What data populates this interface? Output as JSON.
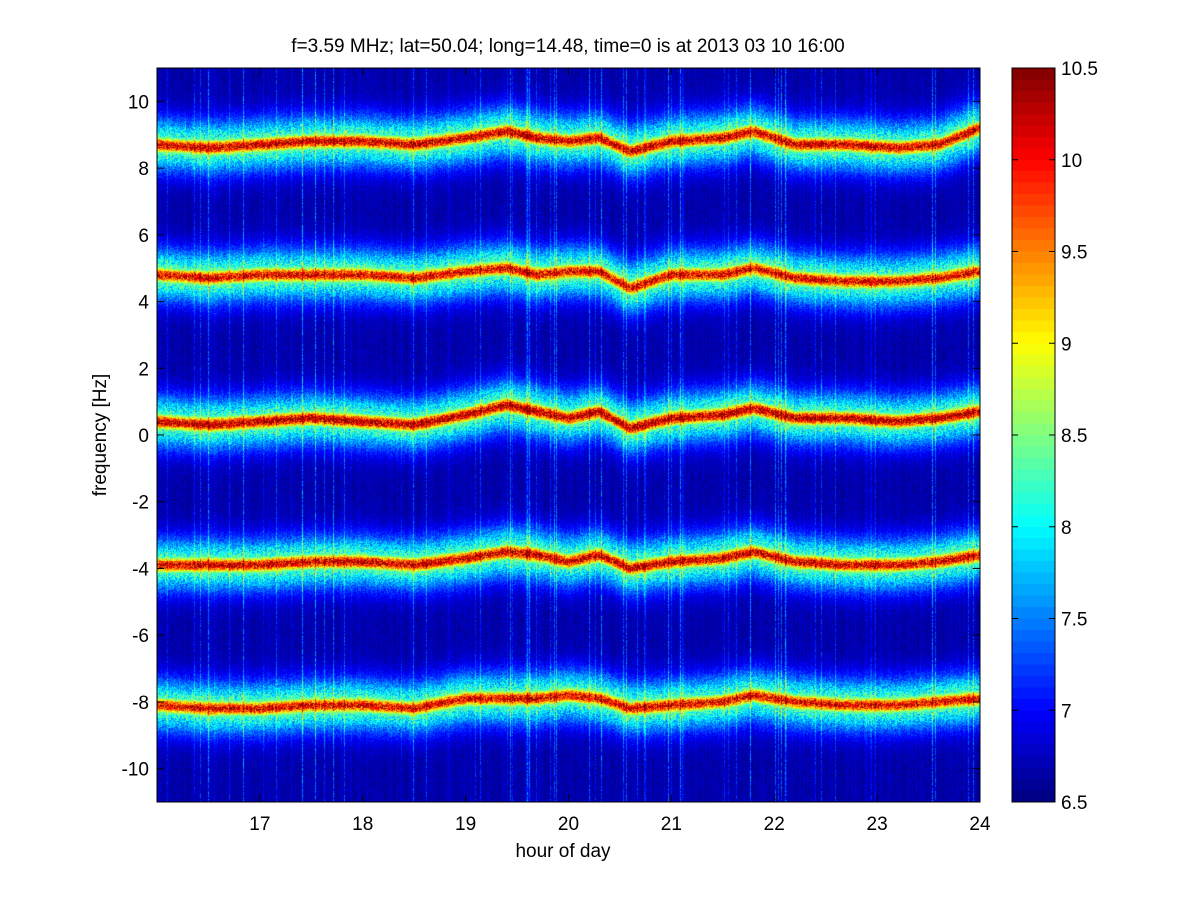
{
  "chart_data": {
    "type": "heatmap",
    "title": "f=3.59 MHz;  lat=50.04; long=14.48, time=0 is at 2013 03 10 16:00",
    "xlabel": "hour of day",
    "ylabel": "frequency [Hz]",
    "xlim": [
      16.0,
      24.0
    ],
    "ylim": [
      -11.0,
      11.0
    ],
    "xticks": [
      17,
      18,
      19,
      20,
      21,
      22,
      23,
      24
    ],
    "yticks": [
      -10,
      -8,
      -6,
      -4,
      -2,
      0,
      2,
      4,
      6,
      8,
      10
    ],
    "colormap": "jet",
    "clim": [
      6.5,
      10.5
    ],
    "colorbar_ticks": [
      6.5,
      7,
      7.5,
      8,
      8.5,
      9,
      9.5,
      10,
      10.5
    ],
    "background_value": 6.6,
    "bands": [
      {
        "center": [
          [
            16.0,
            8.7
          ],
          [
            16.5,
            8.6
          ],
          [
            17.0,
            8.7
          ],
          [
            17.5,
            8.8
          ],
          [
            18.0,
            8.8
          ],
          [
            18.5,
            8.7
          ],
          [
            19.0,
            8.9
          ],
          [
            19.4,
            9.1
          ],
          [
            19.7,
            8.9
          ],
          [
            20.0,
            8.8
          ],
          [
            20.3,
            8.9
          ],
          [
            20.6,
            8.5
          ],
          [
            21.0,
            8.8
          ],
          [
            21.5,
            8.9
          ],
          [
            21.8,
            9.1
          ],
          [
            22.2,
            8.7
          ],
          [
            22.7,
            8.7
          ],
          [
            23.2,
            8.6
          ],
          [
            23.6,
            8.7
          ],
          [
            24.0,
            9.2
          ]
        ],
        "peak": 10.4
      },
      {
        "center": [
          [
            16.0,
            4.8
          ],
          [
            16.5,
            4.7
          ],
          [
            17.0,
            4.8
          ],
          [
            17.5,
            4.8
          ],
          [
            18.0,
            4.8
          ],
          [
            18.5,
            4.7
          ],
          [
            19.0,
            4.9
          ],
          [
            19.4,
            5.0
          ],
          [
            19.7,
            4.8
          ],
          [
            20.0,
            4.9
          ],
          [
            20.3,
            4.9
          ],
          [
            20.6,
            4.4
          ],
          [
            21.0,
            4.8
          ],
          [
            21.5,
            4.8
          ],
          [
            21.8,
            5.0
          ],
          [
            22.2,
            4.7
          ],
          [
            22.7,
            4.6
          ],
          [
            23.2,
            4.6
          ],
          [
            23.6,
            4.7
          ],
          [
            24.0,
            4.9
          ]
        ],
        "peak": 10.3
      },
      {
        "center": [
          [
            16.0,
            0.4
          ],
          [
            16.5,
            0.3
          ],
          [
            17.0,
            0.4
          ],
          [
            17.5,
            0.5
          ],
          [
            18.0,
            0.4
          ],
          [
            18.5,
            0.3
          ],
          [
            19.0,
            0.6
          ],
          [
            19.4,
            0.9
          ],
          [
            19.7,
            0.7
          ],
          [
            20.0,
            0.5
          ],
          [
            20.3,
            0.7
          ],
          [
            20.6,
            0.2
          ],
          [
            21.0,
            0.5
          ],
          [
            21.5,
            0.6
          ],
          [
            21.8,
            0.8
          ],
          [
            22.2,
            0.5
          ],
          [
            22.7,
            0.5
          ],
          [
            23.2,
            0.4
          ],
          [
            23.6,
            0.5
          ],
          [
            24.0,
            0.7
          ]
        ],
        "peak": 10.5
      },
      {
        "center": [
          [
            16.0,
            -3.9
          ],
          [
            16.5,
            -3.9
          ],
          [
            17.0,
            -3.9
          ],
          [
            17.5,
            -3.8
          ],
          [
            18.0,
            -3.8
          ],
          [
            18.5,
            -3.9
          ],
          [
            19.0,
            -3.7
          ],
          [
            19.4,
            -3.5
          ],
          [
            19.7,
            -3.6
          ],
          [
            20.0,
            -3.8
          ],
          [
            20.3,
            -3.6
          ],
          [
            20.6,
            -4.0
          ],
          [
            21.0,
            -3.8
          ],
          [
            21.5,
            -3.7
          ],
          [
            21.8,
            -3.5
          ],
          [
            22.2,
            -3.8
          ],
          [
            22.7,
            -3.9
          ],
          [
            23.2,
            -3.9
          ],
          [
            23.6,
            -3.8
          ],
          [
            24.0,
            -3.6
          ]
        ],
        "peak": 10.4
      },
      {
        "center": [
          [
            16.0,
            -8.1
          ],
          [
            16.5,
            -8.2
          ],
          [
            17.0,
            -8.2
          ],
          [
            17.5,
            -8.1
          ],
          [
            18.0,
            -8.1
          ],
          [
            18.5,
            -8.2
          ],
          [
            19.0,
            -7.9
          ],
          [
            19.4,
            -7.9
          ],
          [
            19.7,
            -7.9
          ],
          [
            20.0,
            -7.8
          ],
          [
            20.3,
            -7.9
          ],
          [
            20.6,
            -8.2
          ],
          [
            21.0,
            -8.1
          ],
          [
            21.5,
            -8.0
          ],
          [
            21.8,
            -7.8
          ],
          [
            22.2,
            -8.0
          ],
          [
            22.7,
            -8.1
          ],
          [
            23.2,
            -8.1
          ],
          [
            23.6,
            -8.0
          ],
          [
            24.0,
            -7.9
          ]
        ],
        "peak": 10.3
      }
    ]
  }
}
